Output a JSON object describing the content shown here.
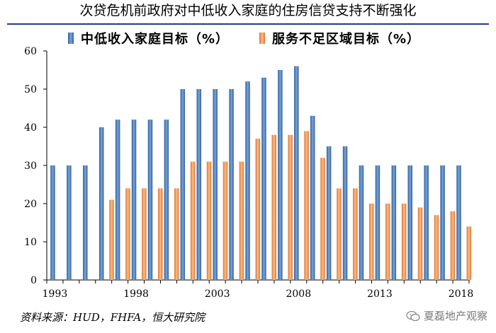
{
  "title": "次贷危机前政府对中低收入家庭的住房信贷支持不断强化",
  "source": "资料来源：HUD，FHFA，恒大研究院",
  "watermark": "夏磊地产观察",
  "chart_data": {
    "type": "bar",
    "title": "次贷危机前政府对中低收入家庭的住房信贷支持不断强化",
    "categories": [
      "1993",
      "1994",
      "1995",
      "1996",
      "1997",
      "1998",
      "1999",
      "2000",
      "2001",
      "2002",
      "2003",
      "2004",
      "2005",
      "2006",
      "2007",
      "2008",
      "2009",
      "2010",
      "2011",
      "2012",
      "2013",
      "2014",
      "2015",
      "2016",
      "2017",
      "2018"
    ],
    "x_tick_labels": [
      "1993",
      "1998",
      "2003",
      "2008",
      "2013",
      "2018"
    ],
    "series": [
      {
        "name": "中低收入家庭目标（%）",
        "color": "#4f81bd",
        "values": [
          30,
          30,
          30,
          40,
          42,
          42,
          42,
          42,
          50,
          50,
          50,
          50,
          52,
          53,
          55,
          56,
          43,
          35,
          35,
          30,
          30,
          30,
          30,
          30,
          30,
          30
        ]
      },
      {
        "name": "服务不足区域目标（%）",
        "color": "#f79646",
        "values": [
          null,
          null,
          null,
          21,
          24,
          24,
          24,
          24,
          31,
          31,
          31,
          31,
          37,
          38,
          38,
          39,
          32,
          24,
          24,
          20,
          20,
          20,
          19,
          17,
          18,
          14
        ]
      }
    ],
    "ylim": [
      0,
      60
    ],
    "yticks": [
      0,
      10,
      20,
      30,
      40,
      50,
      60
    ],
    "xlabel": "",
    "ylabel": "",
    "legend": "top-center"
  }
}
